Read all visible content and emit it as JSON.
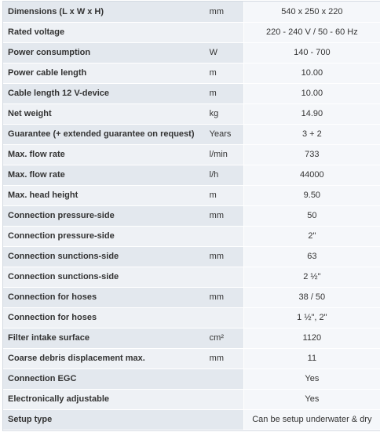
{
  "specs": [
    {
      "label": "Dimensions (L x W x H)",
      "unit": "mm",
      "value": "540 x 250 x 220"
    },
    {
      "label": "Rated voltage",
      "unit": "",
      "value": "220 - 240 V / 50 - 60 Hz"
    },
    {
      "label": "Power consumption",
      "unit": "W",
      "value": "140 - 700"
    },
    {
      "label": "Power cable length",
      "unit": "m",
      "value": "10.00"
    },
    {
      "label": "Cable length 12 V-device",
      "unit": "m",
      "value": "10.00"
    },
    {
      "label": "Net weight",
      "unit": "kg",
      "value": "14.90"
    },
    {
      "label": "Guarantee (+ extended guarantee on request)",
      "unit": "Years",
      "value": "3 + 2"
    },
    {
      "label": "Max. flow rate",
      "unit": "l/min",
      "value": "733"
    },
    {
      "label": "Max. flow rate",
      "unit": "l/h",
      "value": "44000"
    },
    {
      "label": "Max. head height",
      "unit": "m",
      "value": "9.50"
    },
    {
      "label": "Connection pressure-side",
      "unit": "mm",
      "value": "50"
    },
    {
      "label": "Connection pressure-side",
      "unit": "",
      "value": "2\""
    },
    {
      "label": "Connection sunctions-side",
      "unit": "mm",
      "value": "63"
    },
    {
      "label": "Connection sunctions-side",
      "unit": "",
      "value": "2 ½\""
    },
    {
      "label": "Connection for hoses",
      "unit": "mm",
      "value": "38 / 50"
    },
    {
      "label": "Connection for hoses",
      "unit": "",
      "value": "1 ½\", 2\""
    },
    {
      "label": "Filter intake surface",
      "unit": "cm²",
      "value": "1120"
    },
    {
      "label": "Coarse debris displacement max.",
      "unit": "mm",
      "value": "11"
    },
    {
      "label": "Connection EGC",
      "unit": "",
      "value": "Yes"
    },
    {
      "label": "Electronically adjustable",
      "unit": "",
      "value": "Yes"
    },
    {
      "label": "Setup type",
      "unit": "",
      "value": "Can be setup underwater & dry"
    }
  ]
}
